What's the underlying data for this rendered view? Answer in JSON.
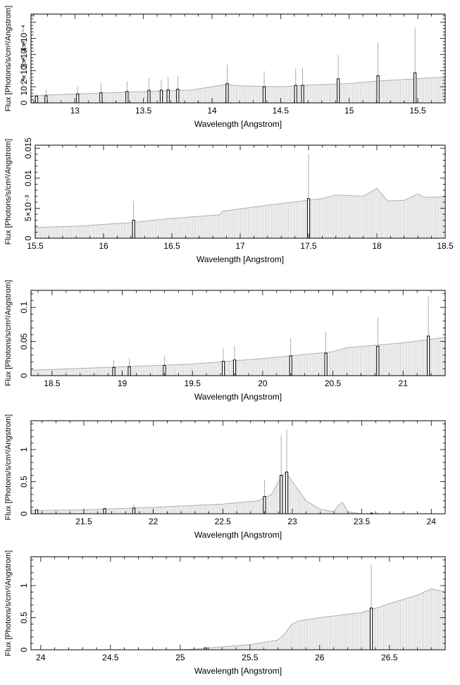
{
  "figure": {
    "xlabel": "Wavelength [Angstrom]",
    "ylabel": "Flux [Photons/s/cm²/Angstrom]"
  },
  "chart_data": [
    {
      "type": "bar",
      "xlim": [
        12.68,
        15.7
      ],
      "ylim": [
        0,
        0.00055
      ],
      "xticks": [
        13,
        13.5,
        14,
        14.5,
        15,
        15.5
      ],
      "xtick_labels": [
        "13",
        "13.5",
        "14",
        "14.5",
        "15",
        "15.5"
      ],
      "yticks": [
        0,
        0.0001,
        0.0002,
        0.0003,
        0.0004
      ],
      "ytick_labels": [
        "0",
        "10⁻⁴",
        "2×10⁻⁴",
        "3×10⁻⁴",
        "4×10⁻⁴"
      ],
      "xlabel": "Wavelength [Angstrom]",
      "ylabel": "Flux [Photons/s/cm²/Angstrom]",
      "grid": false,
      "model": [
        [
          12.68,
          4.5e-05
        ],
        [
          13.0,
          5.5e-05
        ],
        [
          13.5,
          7e-05
        ],
        [
          13.85,
          8e-05
        ],
        [
          14.0,
          0.0001
        ],
        [
          14.1,
          0.000115
        ],
        [
          14.2,
          0.000105
        ],
        [
          14.5,
          0.0001
        ],
        [
          14.7,
          0.00011
        ],
        [
          15.0,
          0.00012
        ],
        [
          15.2,
          0.000135
        ],
        [
          15.5,
          0.00015
        ],
        [
          15.7,
          0.00016
        ]
      ],
      "points": [
        {
          "x": 12.72,
          "y": 4.2e-05,
          "err": 1.2e-05
        },
        {
          "x": 12.79,
          "y": 4.4e-05,
          "err": 3.7e-05
        },
        {
          "x": 13.02,
          "y": 5.5e-05,
          "err": 4.8e-05
        },
        {
          "x": 13.19,
          "y": 6.3e-05,
          "err": 6.1e-05
        },
        {
          "x": 13.38,
          "y": 7.1e-05,
          "err": 6.3e-05
        },
        {
          "x": 13.54,
          "y": 7.8e-05,
          "err": 7.6e-05
        },
        {
          "x": 13.63,
          "y": 7.9e-05,
          "err": 6.5e-05
        },
        {
          "x": 13.68,
          "y": 8.1e-05,
          "err": 7.9e-05
        },
        {
          "x": 13.75,
          "y": 8.5e-05,
          "err": 8.1e-05
        },
        {
          "x": 14.11,
          "y": 0.000119,
          "err": 0.000117
        },
        {
          "x": 14.38,
          "y": 0.0001,
          "err": 9.7e-05
        },
        {
          "x": 14.61,
          "y": 0.000108,
          "err": 0.000107
        },
        {
          "x": 14.66,
          "y": 0.000109,
          "err": 0.000108
        },
        {
          "x": 14.92,
          "y": 0.000149,
          "err": 0.000148
        },
        {
          "x": 15.21,
          "y": 0.000168,
          "err": 0.000207
        },
        {
          "x": 15.48,
          "y": 0.000186,
          "err": 0.000281
        }
      ]
    },
    {
      "type": "bar",
      "xlim": [
        15.5,
        18.5
      ],
      "ylim": [
        0,
        0.0155
      ],
      "xticks": [
        15.5,
        16,
        16.5,
        17,
        17.5,
        18,
        18.5
      ],
      "xtick_labels": [
        "15.5",
        "16",
        "16.5",
        "17",
        "17.5",
        "18",
        "18.5"
      ],
      "yticks": [
        0,
        0.005,
        0.01,
        0.015
      ],
      "ytick_labels": [
        "0",
        "5×10⁻³",
        "0.01",
        "0.015"
      ],
      "xlabel": "Wavelength [Angstrom]",
      "ylabel": "Flux [Photons/s/cm²/Angstrom]",
      "grid": false,
      "model": [
        [
          15.5,
          0.0018
        ],
        [
          15.8,
          0.002
        ],
        [
          16.2,
          0.0026
        ],
        [
          16.5,
          0.0033
        ],
        [
          16.85,
          0.0039
        ],
        [
          16.87,
          0.0045
        ],
        [
          17.2,
          0.0055
        ],
        [
          17.6,
          0.0066
        ],
        [
          17.7,
          0.0072
        ],
        [
          17.9,
          0.007
        ],
        [
          18.0,
          0.0083
        ],
        [
          18.08,
          0.0062
        ],
        [
          18.2,
          0.0063
        ],
        [
          18.3,
          0.0074
        ],
        [
          18.35,
          0.0068
        ],
        [
          18.5,
          0.0069
        ]
      ],
      "points": [
        {
          "x": 16.22,
          "y": 0.003,
          "err": 0.0032
        },
        {
          "x": 17.5,
          "y": 0.0066,
          "err": 0.0074
        }
      ]
    },
    {
      "type": "bar",
      "xlim": [
        18.35,
        21.3
      ],
      "ylim": [
        0,
        0.125
      ],
      "xticks": [
        18.5,
        19,
        19.5,
        20,
        20.5,
        21
      ],
      "xtick_labels": [
        "18.5",
        "19",
        "19.5",
        "20",
        "20.5",
        "21"
      ],
      "yticks": [
        0,
        0.05,
        0.1
      ],
      "ytick_labels": [
        "0",
        "0.05",
        "0.1"
      ],
      "xlabel": "Wavelength [Angstrom]",
      "ylabel": "Flux [Photons/s/cm²/Angstrom]",
      "grid": false,
      "model": [
        [
          18.35,
          0.008
        ],
        [
          18.5,
          0.009
        ],
        [
          19.0,
          0.013
        ],
        [
          19.5,
          0.017
        ],
        [
          20.0,
          0.025
        ],
        [
          20.5,
          0.035
        ],
        [
          20.6,
          0.041
        ],
        [
          21.0,
          0.048
        ],
        [
          21.3,
          0.056
        ]
      ],
      "points": [
        {
          "x": 18.94,
          "y": 0.012,
          "err": 0.011
        },
        {
          "x": 19.05,
          "y": 0.013,
          "err": 0.012
        },
        {
          "x": 19.3,
          "y": 0.015,
          "err": 0.014
        },
        {
          "x": 19.72,
          "y": 0.021,
          "err": 0.019
        },
        {
          "x": 19.8,
          "y": 0.023,
          "err": 0.021
        },
        {
          "x": 20.2,
          "y": 0.029,
          "err": 0.026
        },
        {
          "x": 20.45,
          "y": 0.033,
          "err": 0.031
        },
        {
          "x": 20.82,
          "y": 0.043,
          "err": 0.042
        },
        {
          "x": 21.18,
          "y": 0.058,
          "err": 0.058
        }
      ]
    },
    {
      "type": "bar",
      "xlim": [
        21.12,
        24.1
      ],
      "ylim": [
        0,
        1.45
      ],
      "xticks": [
        21.5,
        22,
        22.5,
        23,
        23.5,
        24
      ],
      "xtick_labels": [
        "21.5",
        "22",
        "22.5",
        "23",
        "23.5",
        "24"
      ],
      "yticks": [
        0,
        0.5,
        1
      ],
      "ytick_labels": [
        "0",
        "0.5",
        "1"
      ],
      "xlabel": "Wavelength [Angstrom]",
      "ylabel": "Flux [Photons/s/cm²/Angstrom]",
      "grid": false,
      "model": [
        [
          21.12,
          0.05
        ],
        [
          21.5,
          0.06
        ],
        [
          22.0,
          0.1
        ],
        [
          22.5,
          0.15
        ],
        [
          22.75,
          0.2
        ],
        [
          22.85,
          0.3
        ],
        [
          22.9,
          0.5
        ],
        [
          22.95,
          0.65
        ],
        [
          23.0,
          0.5
        ],
        [
          23.05,
          0.35
        ],
        [
          23.1,
          0.2
        ],
        [
          23.2,
          0.07
        ],
        [
          23.3,
          0.03
        ],
        [
          23.33,
          0.13
        ],
        [
          23.36,
          0.18
        ],
        [
          23.4,
          0.03
        ],
        [
          23.5,
          0.0
        ],
        [
          24.1,
          0.0
        ]
      ],
      "points": [
        {
          "x": 21.16,
          "y": 0.06,
          "err": 0.01
        },
        {
          "x": 21.65,
          "y": 0.08,
          "err": 0.015
        },
        {
          "x": 21.86,
          "y": 0.09,
          "err": 0.05
        },
        {
          "x": 22.8,
          "y": 0.27,
          "err": 0.26
        },
        {
          "x": 22.92,
          "y": 0.6,
          "err": 0.62
        },
        {
          "x": 22.96,
          "y": 0.65,
          "err": 0.66
        },
        {
          "x": 23.57,
          "y": 0.01,
          "err": 0.005
        }
      ]
    },
    {
      "type": "bar",
      "xlim": [
        23.93,
        26.9
      ],
      "ylim": [
        0,
        1.45
      ],
      "xticks": [
        24,
        24.5,
        25,
        25.5,
        26,
        26.5
      ],
      "xtick_labels": [
        "24",
        "24.5",
        "25",
        "25.5",
        "26",
        "26.5"
      ],
      "yticks": [
        0,
        0.5,
        1
      ],
      "ytick_labels": [
        "0",
        "0.5",
        "1"
      ],
      "xlabel": "Wavelength [Angstrom]",
      "ylabel": "Flux [Photons/s/cm²/Angstrom]",
      "grid": false,
      "model": [
        [
          23.93,
          0.0
        ],
        [
          25.0,
          0.0
        ],
        [
          25.1,
          0.01
        ],
        [
          25.5,
          0.08
        ],
        [
          25.7,
          0.15
        ],
        [
          25.75,
          0.25
        ],
        [
          25.8,
          0.4
        ],
        [
          25.85,
          0.45
        ],
        [
          26.0,
          0.5
        ],
        [
          26.3,
          0.58
        ],
        [
          26.45,
          0.68
        ],
        [
          26.5,
          0.72
        ],
        [
          26.7,
          0.85
        ],
        [
          26.8,
          0.95
        ],
        [
          26.9,
          0.9
        ]
      ],
      "points": [
        {
          "x": 25.18,
          "y": 0.03,
          "err": 0.005
        },
        {
          "x": 26.37,
          "y": 0.65,
          "err": 0.68
        }
      ]
    }
  ]
}
